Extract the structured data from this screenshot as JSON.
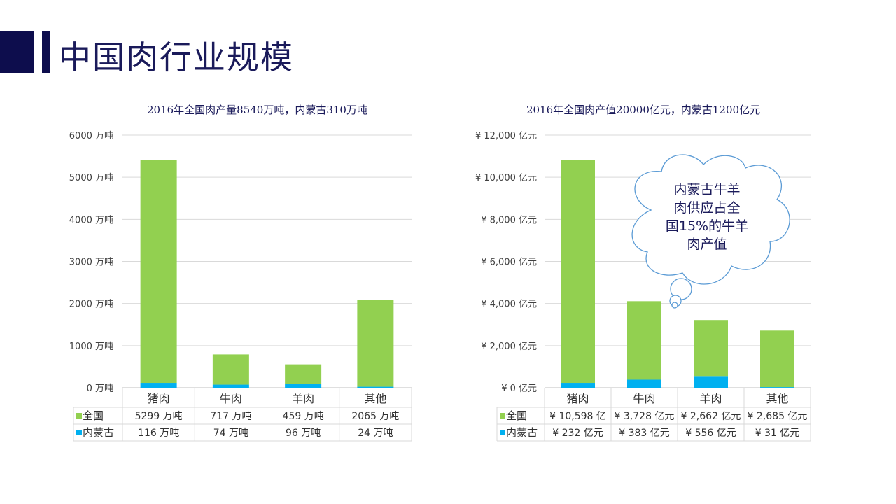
{
  "title": "中国肉行业规模",
  "callout": {
    "lines": [
      "内蒙古牛羊",
      "肉供应占全",
      "国15%的牛羊",
      "肉产值"
    ]
  },
  "colors": {
    "quanguo": "#92d050",
    "neimenggu": "#00b0f0",
    "navy": "#0d0d4d"
  },
  "chart_data": [
    {
      "type": "bar",
      "stacked": true,
      "title": "2016年全国肉产量8540万吨，内蒙古310万吨",
      "categories": [
        "猪肉",
        "牛肉",
        "羊肉",
        "其他"
      ],
      "ylim": [
        0,
        6000
      ],
      "yticks": [
        "0 万吨",
        "1000 万吨",
        "2000 万吨",
        "3000 万吨",
        "4000 万吨",
        "5000 万吨",
        "6000 万吨"
      ],
      "grid": true,
      "legend": "data-table",
      "series": [
        {
          "name": "内蒙古",
          "values": [
            116,
            74,
            96,
            24
          ],
          "labels": [
            "116 万吨",
            "74 万吨",
            "96 万吨",
            "24 万吨"
          ]
        },
        {
          "name": "全国",
          "values": [
            5299,
            717,
            459,
            2065
          ],
          "labels": [
            "5299 万吨",
            "717 万吨",
            "459 万吨",
            "2065 万吨"
          ]
        }
      ]
    },
    {
      "type": "bar",
      "stacked": true,
      "title": "2016年全国肉产值20000亿元，内蒙古1200亿元",
      "categories": [
        "猪肉",
        "牛肉",
        "羊肉",
        "其他"
      ],
      "ylim": [
        0,
        12000
      ],
      "yticks": [
        "¥ 0 亿元",
        "¥ 2,000 亿元",
        "¥ 4,000 亿元",
        "¥ 6,000 亿元",
        "¥ 8,000 亿元",
        "¥ 10,000 亿元",
        "¥ 12,000 亿元"
      ],
      "grid": true,
      "legend": "data-table",
      "series": [
        {
          "name": "内蒙古",
          "values": [
            232,
            383,
            556,
            31
          ],
          "labels": [
            "¥ 232 亿元",
            "¥ 383 亿元",
            "¥ 556 亿元",
            "¥ 31 亿元"
          ]
        },
        {
          "name": "全国",
          "values": [
            10598,
            3728,
            2662,
            2685
          ],
          "labels": [
            "¥ 10,598 亿",
            "¥ 3,728 亿元",
            "¥ 2,662 亿元",
            "¥ 2,685 亿元"
          ]
        }
      ]
    }
  ]
}
